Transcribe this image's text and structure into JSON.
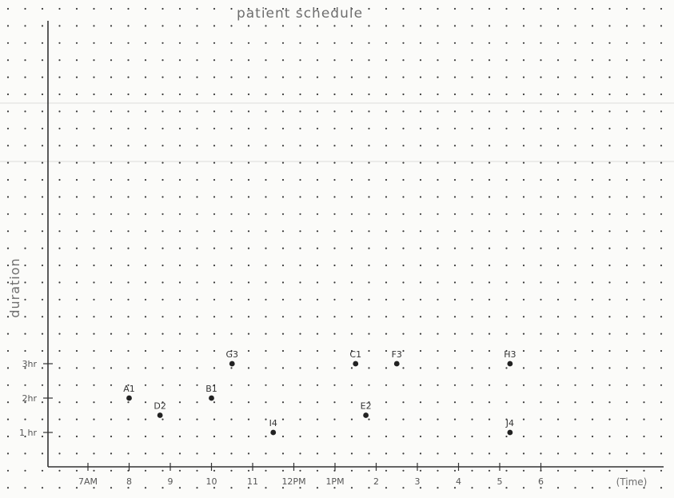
{
  "chart_data": {
    "type": "scatter",
    "title": "patient schedule",
    "xlabel": "(Time)",
    "ylabel": "duration",
    "x_unit": "hour of day",
    "y_unit": "hours",
    "x_ticks": [
      {
        "value": 7,
        "label": "7AM"
      },
      {
        "value": 8,
        "label": "8"
      },
      {
        "value": 9,
        "label": "9"
      },
      {
        "value": 10,
        "label": "10"
      },
      {
        "value": 11,
        "label": "11"
      },
      {
        "value": 12,
        "label": "12PM"
      },
      {
        "value": 13,
        "label": "1PM"
      },
      {
        "value": 14,
        "label": "2"
      },
      {
        "value": 15,
        "label": "3"
      },
      {
        "value": 16,
        "label": "4"
      },
      {
        "value": 17,
        "label": "5"
      },
      {
        "value": 18,
        "label": "6"
      }
    ],
    "y_ticks": [
      {
        "value": 1,
        "label": "1 hr"
      },
      {
        "value": 2,
        "label": "2hr"
      },
      {
        "value": 3,
        "label": "3hr"
      }
    ],
    "points": [
      {
        "label": "A1",
        "x": 8.0,
        "y": 2.0
      },
      {
        "label": "D2",
        "x": 8.75,
        "y": 1.5
      },
      {
        "label": "B1",
        "x": 10.0,
        "y": 2.0
      },
      {
        "label": "G3",
        "x": 10.5,
        "y": 3.0
      },
      {
        "label": "I4",
        "x": 11.5,
        "y": 1.0
      },
      {
        "label": "C1",
        "x": 13.5,
        "y": 3.0
      },
      {
        "label": "E2",
        "x": 13.75,
        "y": 1.5
      },
      {
        "label": "F3",
        "x": 14.5,
        "y": 3.0
      },
      {
        "label": "H3",
        "x": 17.25,
        "y": 3.0
      },
      {
        "label": "J4",
        "x": 17.25,
        "y": 1.0
      }
    ],
    "grid": "dot grid"
  }
}
